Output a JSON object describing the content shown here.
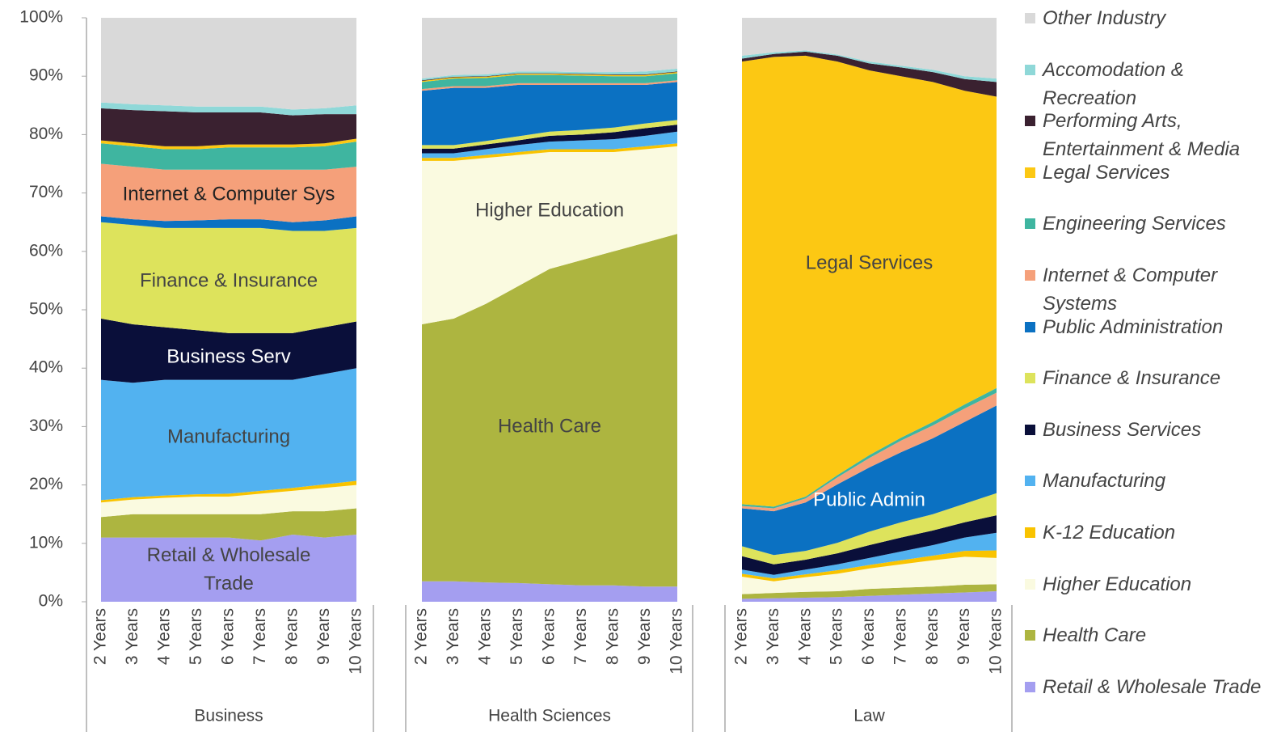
{
  "chart_data": [
    {
      "type": "area",
      "stacked": true,
      "xlabel": "Business",
      "categories": [
        "2 Years",
        "3 Years",
        "4 Years",
        "5 Years",
        "6 Years",
        "7 Years",
        "8 Years",
        "9 Years",
        "10 Years"
      ],
      "ylim": [
        0,
        100
      ],
      "yticks": [
        {
          "value": 0,
          "label": "0%"
        },
        {
          "value": 10,
          "label": "10%"
        },
        {
          "value": 20,
          "label": "20%"
        },
        {
          "value": 30,
          "label": "30%"
        },
        {
          "value": 40,
          "label": "40%"
        },
        {
          "value": 50,
          "label": "50%"
        },
        {
          "value": 60,
          "label": "60%"
        },
        {
          "value": 70,
          "label": "70%"
        },
        {
          "value": 80,
          "label": "80%"
        },
        {
          "value": 90,
          "label": "90%"
        },
        {
          "value": 100,
          "label": "100%"
        }
      ],
      "series": [
        {
          "name": "Retail & Wholesale Trade",
          "color": "#a49ef0",
          "values": [
            11,
            11,
            11,
            11,
            11,
            10.5,
            11.5,
            11,
            11.5
          ],
          "label": "Retail & Wholesale Trade",
          "label_color": "#444444"
        },
        {
          "name": "Health Care",
          "color": "#adb540",
          "values": [
            3.5,
            4,
            4,
            4,
            4,
            4.5,
            4,
            4.5,
            4.5
          ]
        },
        {
          "name": "Higher Education",
          "color": "#fafae0",
          "values": [
            2.5,
            2.5,
            2.8,
            3,
            3,
            3.5,
            3.5,
            4,
            4
          ]
        },
        {
          "name": "K-12 Education",
          "color": "#f9c300",
          "values": [
            0.4,
            0.4,
            0.4,
            0.4,
            0.5,
            0.5,
            0.5,
            0.6,
            0.7
          ]
        },
        {
          "name": "Manufacturing",
          "color": "#52b2f0",
          "values": [
            20.6,
            19.6,
            19.8,
            19.6,
            19.5,
            19,
            18.5,
            18.9,
            19.3
          ],
          "label": "Manufacturing",
          "label_color": "#444444"
        },
        {
          "name": "Business Services",
          "color": "#0a0f3a",
          "values": [
            10.5,
            10,
            9,
            8.5,
            8,
            8,
            8,
            8,
            8
          ],
          "label": "Business Serv",
          "label_color": "#ffffff"
        },
        {
          "name": "Finance & Insurance",
          "color": "#dde35c",
          "values": [
            16.5,
            17,
            17,
            17.5,
            18,
            18,
            17.5,
            16.5,
            16
          ],
          "label": "Finance & Insurance",
          "label_color": "#444444"
        },
        {
          "name": "Public Administration",
          "color": "#0b71c2",
          "values": [
            1,
            1,
            1.2,
            1.3,
            1.5,
            1.5,
            1.5,
            1.8,
            2
          ]
        },
        {
          "name": "Internet & Computer Systems",
          "color": "#f5a07a",
          "values": [
            9,
            9,
            8.8,
            8.7,
            8.5,
            8.5,
            9,
            8.7,
            8.5
          ],
          "label": "Internet & Computer Sys",
          "label_color": "#222222"
        },
        {
          "name": "Engineering Services",
          "color": "#3fb5a0",
          "values": [
            3.5,
            3.5,
            3.5,
            3.5,
            3.8,
            3.8,
            3.8,
            4,
            4.3
          ]
        },
        {
          "name": "Legal Services",
          "color": "#fcc813",
          "values": [
            0.5,
            0.5,
            0.5,
            0.5,
            0.5,
            0.5,
            0.5,
            0.5,
            0.5
          ]
        },
        {
          "name": "Performing Arts, Entertainment & Media",
          "color": "#3a2130",
          "values": [
            5.5,
            5.7,
            6,
            5.8,
            5.5,
            5.5,
            5,
            5,
            4.2
          ]
        },
        {
          "name": "Accomodation & Recreation",
          "color": "#8fd8d8",
          "values": [
            1,
            1,
            1,
            1,
            1,
            1,
            1,
            1,
            1.5
          ]
        },
        {
          "name": "Other Industry",
          "color": "#d9d9d9",
          "values": [
            14.5,
            14.8,
            15,
            15.2,
            15.2,
            15.2,
            15.7,
            15.5,
            15
          ]
        }
      ]
    },
    {
      "type": "area",
      "stacked": true,
      "xlabel": "Health Sciences",
      "categories": [
        "2 Years",
        "3 Years",
        "4 Years",
        "5 Years",
        "6 Years",
        "7 Years",
        "8 Years",
        "9 Years",
        "10 Years"
      ],
      "ylim": [
        0,
        100
      ],
      "series": [
        {
          "name": "Retail & Wholesale Trade",
          "color": "#a49ef0",
          "values": [
            3.5,
            3.5,
            3.3,
            3.2,
            3,
            2.8,
            2.8,
            2.6,
            2.6
          ]
        },
        {
          "name": "Health Care",
          "color": "#adb540",
          "values": [
            44,
            45,
            47.7,
            50.8,
            54,
            55.7,
            57.2,
            58.9,
            60.4
          ],
          "label": "Health Care",
          "label_color": "#444444"
        },
        {
          "name": "Higher Education",
          "color": "#fafae0",
          "values": [
            28,
            27,
            25,
            22.5,
            20,
            18.5,
            17,
            16,
            15
          ],
          "label": "Higher Education",
          "label_color": "#444444"
        },
        {
          "name": "K-12 Education",
          "color": "#f9c300",
          "values": [
            0.5,
            0.5,
            0.5,
            0.5,
            0.5,
            0.5,
            0.5,
            0.5,
            0.5
          ]
        },
        {
          "name": "Manufacturing",
          "color": "#52b2f0",
          "values": [
            0.8,
            0.8,
            1,
            1.2,
            1.3,
            1.5,
            1.7,
            1.8,
            2
          ]
        },
        {
          "name": "Business Services",
          "color": "#0a0f3a",
          "values": [
            0.8,
            0.8,
            0.8,
            0.8,
            1,
            1,
            1.2,
            1.3,
            1.2
          ]
        },
        {
          "name": "Finance & Insurance",
          "color": "#dde35c",
          "values": [
            0.6,
            0.6,
            0.6,
            0.7,
            0.7,
            0.8,
            0.8,
            0.8,
            0.8
          ]
        },
        {
          "name": "Public Administration",
          "color": "#0b71c2",
          "values": [
            9.3,
            9.8,
            9.1,
            8.8,
            8,
            7.7,
            7.3,
            6.6,
            6.5
          ]
        },
        {
          "name": "Internet & Computer Systems",
          "color": "#f5a07a",
          "values": [
            0.3,
            0.3,
            0.3,
            0.3,
            0.3,
            0.3,
            0.3,
            0.3,
            0.3
          ]
        },
        {
          "name": "Engineering Services",
          "color": "#3fb5a0",
          "values": [
            1.2,
            1.3,
            1.4,
            1.4,
            1.4,
            1.3,
            1.2,
            1.2,
            1.2
          ]
        },
        {
          "name": "Legal Services",
          "color": "#fcc813",
          "values": [
            0.2,
            0.2,
            0.2,
            0.2,
            0.2,
            0.2,
            0.2,
            0.2,
            0.2
          ]
        },
        {
          "name": "Performing Arts, Entertainment & Media",
          "color": "#3a2130",
          "values": [
            0.1,
            0.1,
            0.1,
            0.1,
            0.1,
            0.1,
            0.1,
            0.1,
            0.1
          ]
        },
        {
          "name": "Accomodation & Recreation",
          "color": "#8fd8d8",
          "values": [
            0.3,
            0.3,
            0.3,
            0.3,
            0.3,
            0.3,
            0.4,
            0.5,
            0.5
          ]
        },
        {
          "name": "Other Industry",
          "color": "#d9d9d9",
          "values": [
            10.4,
            9.8,
            9.7,
            9.2,
            9.2,
            9.3,
            9.3,
            9.2,
            8.7
          ]
        }
      ]
    },
    {
      "type": "area",
      "stacked": true,
      "xlabel": "Law",
      "categories": [
        "2 Years",
        "3 Years",
        "4 Years",
        "5 Years",
        "6 Years",
        "7 Years",
        "8 Years",
        "9 Years",
        "10 Years"
      ],
      "ylim": [
        0,
        100
      ],
      "series": [
        {
          "name": "Retail & Wholesale Trade",
          "color": "#a49ef0",
          "values": [
            0.5,
            0.6,
            0.7,
            0.8,
            1,
            1.2,
            1.4,
            1.6,
            1.8
          ]
        },
        {
          "name": "Health Care",
          "color": "#adb540",
          "values": [
            0.8,
            0.9,
            1,
            1,
            1.2,
            1.2,
            1.2,
            1.3,
            1.2
          ]
        },
        {
          "name": "Higher Education",
          "color": "#fafae0",
          "values": [
            3,
            2,
            2.5,
            3,
            3.5,
            4,
            4.5,
            4.8,
            4.5
          ]
        },
        {
          "name": "K-12 Education",
          "color": "#f9c300",
          "values": [
            0.5,
            0.5,
            0.5,
            0.6,
            0.6,
            0.7,
            0.8,
            1,
            1.3
          ]
        },
        {
          "name": "Manufacturing",
          "color": "#52b2f0",
          "values": [
            0.7,
            0.6,
            0.8,
            1,
            1.2,
            1.5,
            1.8,
            2.3,
            3
          ]
        },
        {
          "name": "Business Services",
          "color": "#0a0f3a",
          "values": [
            2.3,
            1.8,
            1.7,
            1.9,
            2.2,
            2.4,
            2.5,
            2.6,
            3
          ]
        },
        {
          "name": "Finance & Insurance",
          "color": "#dde35c",
          "values": [
            1.7,
            1.6,
            1.5,
            1.8,
            2.3,
            2.6,
            2.8,
            3.2,
            3.8
          ]
        },
        {
          "name": "Public Administration",
          "color": "#0b71c2",
          "values": [
            6.5,
            7.5,
            8.3,
            10,
            11,
            12,
            13,
            14,
            15
          ],
          "label": "Public Admin",
          "label_color": "#ffffff"
        },
        {
          "name": "Internet & Computer Systems",
          "color": "#f5a07a",
          "values": [
            0.4,
            0.5,
            0.7,
            1.2,
            1.6,
            2,
            2.2,
            2.3,
            2.2
          ]
        },
        {
          "name": "Engineering Services",
          "color": "#3fb5a0",
          "values": [
            0.3,
            0.3,
            0.3,
            0.4,
            0.5,
            0.5,
            0.6,
            0.7,
            0.8
          ]
        },
        {
          "name": "Legal Services",
          "color": "#fcc813",
          "values": [
            75.8,
            77,
            75.5,
            70.8,
            65.9,
            61.9,
            58.2,
            53.7,
            49.9
          ],
          "label": "Legal Services",
          "label_color": "#444444"
        },
        {
          "name": "Performing Arts, Entertainment & Media",
          "color": "#3a2130",
          "values": [
            0.5,
            0.5,
            0.7,
            1,
            1.2,
            1.5,
            1.7,
            2,
            2.5
          ]
        },
        {
          "name": "Accomodation & Recreation",
          "color": "#8fd8d8",
          "values": [
            0.5,
            0.3,
            0.2,
            0.2,
            0.3,
            0.3,
            0.4,
            0.5,
            0.6
          ]
        },
        {
          "name": "Other Industry",
          "color": "#d9d9d9",
          "values": [
            6.5,
            5.9,
            5.6,
            6.3,
            7.5,
            8.2,
            8.9,
            10,
            10.4
          ]
        }
      ]
    }
  ]
}
